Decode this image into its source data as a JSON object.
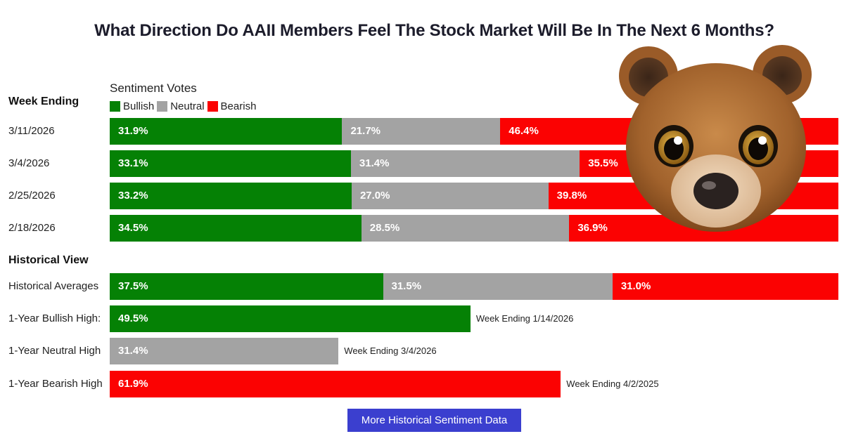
{
  "title": "What Direction Do AAII Members Feel The Stock Market Will Be In The Next 6 Months?",
  "legend_title": "Sentiment Votes",
  "week_ending_header": "Week Ending",
  "historical_header": "Historical View",
  "button_label": "More Historical Sentiment Data",
  "colors": {
    "bullish": "#058105",
    "neutral": "#a3a3a3",
    "bearish": "#fb0202"
  },
  "icons": {
    "mascot": "bear-mascot-icon"
  },
  "chart_data": {
    "type": "bar",
    "stacked": true,
    "orientation": "horizontal",
    "legend": [
      "Bullish",
      "Neutral",
      "Bearish"
    ],
    "legend_placement": "top-left",
    "weekly": [
      {
        "label": "3/11/2026",
        "values": [
          31.9,
          21.7,
          46.4
        ],
        "display": [
          "31.9%",
          "21.7%",
          "46.4%"
        ]
      },
      {
        "label": "3/4/2026",
        "values": [
          33.1,
          31.4,
          35.5
        ],
        "display": [
          "33.1%",
          "31.4%",
          "35.5%"
        ]
      },
      {
        "label": "2/25/2026",
        "values": [
          33.2,
          27.0,
          39.8
        ],
        "display": [
          "33.2%",
          "27.0%",
          "39.8%"
        ]
      },
      {
        "label": "2/18/2026",
        "values": [
          34.5,
          28.5,
          36.9
        ],
        "display": [
          "34.5%",
          "28.5%",
          "36.9%"
        ]
      }
    ],
    "historical_averages": {
      "label": "Historical Averages",
      "values": [
        37.5,
        31.5,
        31.0
      ],
      "display": [
        "37.5%",
        "31.5%",
        "31.0%"
      ]
    },
    "highs": [
      {
        "label": "1-Year Bullish High:",
        "category": "bullish",
        "value": 49.5,
        "display": "49.5%",
        "note": "Week Ending 1/14/2026"
      },
      {
        "label": "1-Year Neutral High",
        "category": "neutral",
        "value": 31.4,
        "display": "31.4%",
        "note": "Week Ending 3/4/2026"
      },
      {
        "label": "1-Year Bearish High",
        "category": "bearish",
        "value": 61.9,
        "display": "61.9%",
        "note": "Week Ending 4/2/2025"
      }
    ],
    "xlim": [
      0,
      100
    ],
    "grid": false
  }
}
